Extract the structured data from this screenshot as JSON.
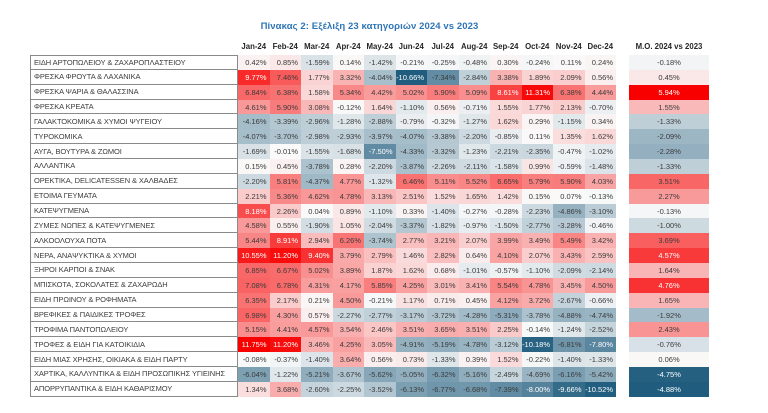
{
  "title": "Πίνακας 2: Εξέλιξη 23 κατηγοριών 2024 vs 2023",
  "chart_data": {
    "type": "heatmap",
    "title": "Πίνακας 2: Εξέλιξη 23 κατηγοριών 2024 vs 2023",
    "columns": [
      "Jan-24",
      "Feb-24",
      "Mar-24",
      "Apr-24",
      "May-24",
      "Jun-24",
      "Jul-24",
      "Aug-24",
      "Sep-24",
      "Oct-24",
      "Nov-24",
      "Dec-24"
    ],
    "summary_column": "Μ.Ο. 2024 vs 2023",
    "value_format": "percent_2dp",
    "monthly_range": [
      -10.66,
      11.75
    ],
    "mo_range": [
      -4.88,
      5.94
    ],
    "color_scale": {
      "max_red": "#F80000",
      "min_blue": "#1F5C7D",
      "mid": "#FAFAFA",
      "title_blue": "#2E75B6"
    },
    "rows": [
      {
        "label": "ΕΙΔΗ ΑΡΤΟΠΩΛΕΙΟΥ & ΖΑΧΑΡΟΠΛΑΣΤΕΙΟΥ",
        "values": [
          0.42,
          0.85,
          -1.59,
          0.14,
          -1.42,
          -0.21,
          -0.25,
          -0.48,
          0.3,
          -0.24,
          0.11,
          0.24
        ],
        "mo": -0.18
      },
      {
        "label": "ΦΡΕΣΚΑ ΦΡΟΥΤΑ & ΛΑΧΑΝΙΚΑ",
        "values": [
          9.77,
          7.46,
          1.77,
          3.32,
          -4.04,
          -10.66,
          -7.34,
          -2.84,
          3.38,
          1.89,
          2.09,
          0.56
        ],
        "mo": 0.45
      },
      {
        "label": "ΦΡΕΣΚΑ ΨΑΡΙΑ & ΘΑΛΑΣΣΙΝΑ",
        "values": [
          6.84,
          6.38,
          1.58,
          5.34,
          4.42,
          5.02,
          5.9,
          5.09,
          8.61,
          11.31,
          6.38,
          4.44
        ],
        "mo": 5.94
      },
      {
        "label": "ΦΡΕΣΚΑ ΚΡΕΑΤΑ",
        "values": [
          4.61,
          5.9,
          3.08,
          -0.12,
          1.64,
          -1.1,
          0.56,
          -0.71,
          1.55,
          1.77,
          2.13,
          -0.7
        ],
        "mo": 1.55
      },
      {
        "label": "ΓΑΛΑΚΤΟΚΟΜΙΚΑ & ΧΥΜΟΙ ΨΥΓΕΙΟΥ",
        "values": [
          -4.16,
          -3.39,
          -2.96,
          -1.28,
          -2.88,
          -0.79,
          -0.32,
          -1.27,
          1.62,
          0.29,
          -1.15,
          0.34
        ],
        "mo": -1.33
      },
      {
        "label": "ΤΥΡΟΚΟΜΙΚΑ",
        "values": [
          -4.07,
          -3.7,
          -2.98,
          -2.93,
          -3.97,
          -4.07,
          -3.38,
          -2.2,
          -0.85,
          0.11,
          1.35,
          1.62
        ],
        "mo": -2.09
      },
      {
        "label": "ΑΥΓΑ, ΒΟΥΤΥΡΑ & ΖΩΜΟΙ",
        "values": [
          -1.69,
          -0.01,
          -1.55,
          -1.68,
          -7.5,
          -4.33,
          -3.32,
          -1.23,
          -2.21,
          -2.35,
          -0.47,
          -1.02
        ],
        "mo": -2.28
      },
      {
        "label": "ΑΛΛΑΝΤΙΚΑ",
        "values": [
          0.15,
          0.45,
          -3.78,
          0.28,
          -2.2,
          -3.87,
          -2.26,
          -2.11,
          -1.58,
          0.99,
          -0.59,
          -1.48
        ],
        "mo": -1.33
      },
      {
        "label": "ΟΡΕΚΤΙΚΑ, DELICATESSEN & ΧΑΛΒΑΔΕΣ",
        "values": [
          -2.2,
          5.81,
          -4.37,
          4.77,
          -1.32,
          6.46,
          5.11,
          5.52,
          6.65,
          5.79,
          5.9,
          4.03
        ],
        "mo": 3.51
      },
      {
        "label": "ΕΤΟΙΜΑ ΓΕΥΜΑΤΑ",
        "values": [
          2.21,
          5.36,
          4.62,
          4.78,
          3.13,
          2.51,
          1.52,
          1.65,
          1.42,
          0.15,
          0.07,
          -0.13
        ],
        "mo": 2.27
      },
      {
        "label": "ΚΑΤΕΨΥΓΜΕΝΑ",
        "values": [
          8.18,
          2.26,
          0.04,
          0.89,
          -1.1,
          0.33,
          -1.4,
          -0.27,
          -0.28,
          -2.23,
          -4.86,
          -3.1
        ],
        "mo": -0.13
      },
      {
        "label": "ΖΥΜΕΣ ΝΩΠΕΣ & ΚΑΤΕΨΥΓΜΕΝΕΣ",
        "values": [
          4.58,
          0.55,
          -1.9,
          1.05,
          -2.04,
          -3.37,
          -1.82,
          -0.97,
          -1.5,
          -2.77,
          -3.28,
          -0.46
        ],
        "mo": -1.0
      },
      {
        "label": "ΑΛΚΟΟΛΟΥΧΑ ΠΟΤΑ",
        "values": [
          5.44,
          8.91,
          2.94,
          6.26,
          -3.74,
          2.77,
          3.21,
          2.07,
          3.99,
          3.49,
          5.49,
          3.42
        ],
        "mo": 3.69
      },
      {
        "label": "ΝΕΡΑ, ΑΝΑΨΥΚΤΙΚΑ & ΧΥΜΟΙ",
        "values": [
          10.55,
          11.2,
          9.4,
          3.79,
          2.79,
          1.46,
          2.82,
          0.64,
          4.1,
          2.07,
          3.43,
          2.59
        ],
        "mo": 4.57
      },
      {
        "label": "ΞΗΡΟΙ ΚΑΡΠΟΙ & ΣΝΑΚ",
        "values": [
          6.85,
          6.67,
          5.02,
          3.89,
          1.87,
          1.62,
          0.68,
          -1.01,
          -0.57,
          -1.1,
          -2.09,
          -2.14
        ],
        "mo": 1.64
      },
      {
        "label": "ΜΠΙΣΚΟΤΑ, ΣΟΚΟΛΑΤΕΣ & ΖΑΧΑΡΩΔΗ",
        "values": [
          7.08,
          6.78,
          4.31,
          4.17,
          5.85,
          4.25,
          3.01,
          3.41,
          5.54,
          4.78,
          3.45,
          4.5
        ],
        "mo": 4.76
      },
      {
        "label": "ΕΙΔΗ ΠΡΩΙΝΟΥ & ΡΟΦΗΜΑΤΑ",
        "values": [
          6.35,
          2.17,
          0.21,
          4.5,
          -0.21,
          1.17,
          0.71,
          0.45,
          4.12,
          3.72,
          -2.67,
          -0.66
        ],
        "mo": 1.65
      },
      {
        "label": "ΒΡΕΦΙΚΕΣ & ΠΑΙΔΙΚΕΣ ΤΡΟΦΕΣ",
        "values": [
          6.98,
          4.3,
          0.57,
          -2.27,
          -2.77,
          -3.17,
          -3.72,
          -4.28,
          -5.31,
          -3.78,
          -4.88,
          -4.74
        ],
        "mo": -1.92
      },
      {
        "label": "ΤΡΟΦΙΜΑ ΠΑΝΤΟΠΩΛΕΙΟΥ",
        "values": [
          5.15,
          4.41,
          4.57,
          3.54,
          2.46,
          3.51,
          3.65,
          3.51,
          2.25,
          -0.14,
          -1.24,
          -2.52
        ],
        "mo": 2.43
      },
      {
        "label": "ΤΡΟΦΕΣ & ΕΙΔΗ ΓΙΑ ΚΑΤΟΙΚΙΔΙΑ",
        "values": [
          11.75,
          11.2,
          3.46,
          4.25,
          3.05,
          -4.91,
          -5.19,
          -4.78,
          -3.12,
          -10.18,
          -6.81,
          -7.8
        ],
        "mo": -0.76
      },
      {
        "label": "ΕΙΔΗ ΜΙΑΣ ΧΡΗΣΗΣ, ΟΙΚΙΑΚΑ & ΕΙΔΗ ΠΑΡΤΥ",
        "values": [
          -0.08,
          -0.37,
          -1.4,
          3.64,
          0.56,
          0.73,
          -1.33,
          0.39,
          1.52,
          -0.22,
          -1.4,
          -1.33
        ],
        "mo": 0.06
      },
      {
        "label": "ΧΑΡΤΙΚΑ, ΚΑΛΛΥΝΤΙΚΑ & ΕΙΔΗ ΠΡΟΣΩΠΙΚΗΣ ΥΓΙΕΙΝΗΣ",
        "values": [
          -6.04,
          -1.22,
          -5.21,
          -3.67,
          -5.62,
          -5.05,
          -6.32,
          -5.16,
          -2.49,
          -4.69,
          -6.16,
          -5.42
        ],
        "mo": -4.75
      },
      {
        "label": "ΑΠΟΡΡΥΠΑΝΤΙΚΑ & ΕΙΔΗ ΚΑΘΑΡΙΣΜΟΥ",
        "values": [
          1.34,
          3.68,
          -2.6,
          -2.25,
          -3.52,
          -6.13,
          -6.77,
          -6.68,
          -7.39,
          -8.0,
          -9.66,
          -10.52
        ],
        "mo": -4.88
      }
    ]
  }
}
